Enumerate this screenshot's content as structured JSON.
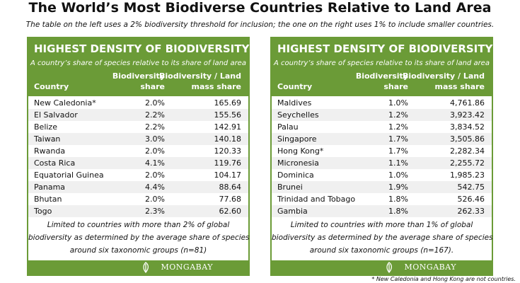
{
  "title": "The World’s Most Biodiverse Countries Relative to Land Area",
  "subtitle": "The table on the left uses a 2% biodiversity threshold for inclusion; the one on the right uses 1% to include smaller countries.",
  "tables": [
    {
      "heading": "HIGHEST DENSITY OF BIODIVERSITY",
      "subheading": "A country’s share of species relative to its share of land area",
      "columns": [
        [
          "Country"
        ],
        [
          "Biodiversity",
          "share"
        ],
        [
          "Biodiversity / Land",
          "mass share"
        ]
      ],
      "rows": [
        [
          "New Caledonia*",
          "2.0%",
          "165.69"
        ],
        [
          "El Salvador",
          "2.2%",
          "155.56"
        ],
        [
          "Belize",
          "2.2%",
          "142.91"
        ],
        [
          "Taiwan",
          "3.0%",
          "140.18"
        ],
        [
          "Rwanda",
          "2.0%",
          "120.33"
        ],
        [
          "Costa Rica",
          "4.1%",
          "119.76"
        ],
        [
          "Equatorial Guinea",
          "2.0%",
          "104.17"
        ],
        [
          "Panama",
          "4.4%",
          "88.64"
        ],
        [
          "Bhutan",
          "2.0%",
          "77.68"
        ],
        [
          "Togo",
          "2.3%",
          "62.60"
        ]
      ],
      "note": [
        "Limited to countries with more than 2% of global",
        "biodiversity as determined by the average share of species",
        "around six taxonomic groups (n=81)"
      ],
      "logo": "MONGABAY"
    },
    {
      "heading": "HIGHEST DENSITY OF BIODIVERSITY",
      "subheading": "A country’s share of species relative to its share of land area",
      "columns": [
        [
          "Country"
        ],
        [
          "Biodiversity",
          "share"
        ],
        [
          "Biodiversity / Land",
          "mass share"
        ]
      ],
      "rows": [
        [
          "Maldives",
          "1.0%",
          "4,761.86"
        ],
        [
          "Seychelles",
          "1.2%",
          "3,923.42"
        ],
        [
          "Palau",
          "1.2%",
          "3,834.52"
        ],
        [
          "Singapore",
          "1.7%",
          "3,505.86"
        ],
        [
          "Hong Kong*",
          "1.7%",
          "2,282.34"
        ],
        [
          "Micronesia",
          "1.1%",
          "2,255.72"
        ],
        [
          "Dominica",
          "1.0%",
          "1,985.23"
        ],
        [
          "Brunei",
          "1.9%",
          "542.75"
        ],
        [
          "Trinidad and Tobago",
          "1.8%",
          "526.46"
        ],
        [
          "Gambia",
          "1.8%",
          "262.33"
        ]
      ],
      "note": [
        "Limited to countries with more than 1% of global",
        "biodiversity as determined by the average share of species",
        "around six taxonomic groups (n=167)."
      ],
      "logo": "MONGABAY"
    }
  ],
  "footnote": "* New Caledonia and Hong Kong are not countries."
}
